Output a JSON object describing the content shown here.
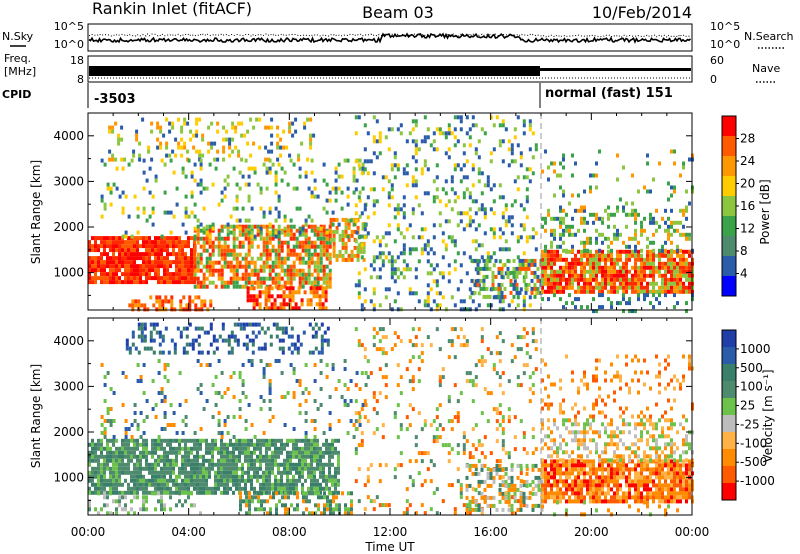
{
  "header": {
    "station": "Rankin Inlet (fitACF)",
    "beam": "Beam 03",
    "date": "10/Feb/2014"
  },
  "noise_panel": {
    "left_label": "N.Sky",
    "right_label": "N.Search",
    "right_legend_line": "dotted",
    "left_ticks": [
      "10^5",
      "10^0"
    ],
    "right_ticks": [
      "10^5",
      "10^0"
    ]
  },
  "freq_panel": {
    "left_label_line1": "Freq.",
    "left_label_line2": "[MHz]",
    "right_label": "Nave",
    "right_legend_line": "dotted",
    "left_ticks": [
      "18",
      "8"
    ],
    "right_ticks": [
      "60",
      "0"
    ]
  },
  "cpid_panel": {
    "label": "CPID",
    "segments": [
      {
        "text": "-3503",
        "start_hour": 0,
        "end_hour": 18
      },
      {
        "text": "normal (fast) 151",
        "start_hour": 18,
        "end_hour": 24
      }
    ]
  },
  "chart_data": [
    {
      "type": "heatmap",
      "name": "power",
      "ylabel": "Slant Range [km]",
      "xlabel": "Time UT",
      "xlim_hours": [
        0,
        24
      ],
      "ylim_km": [
        180,
        4500
      ],
      "ytick_values": [
        1000,
        2000,
        3000,
        4000
      ],
      "ytick_labels": [
        "1000",
        "2000",
        "3000",
        "4000"
      ],
      "colorbar": {
        "label": "Power [dB]",
        "ticks": [
          "28",
          "24",
          "20",
          "16",
          "12",
          "8",
          "4"
        ],
        "colors": [
          "#ff0000",
          "#ff5a00",
          "#ff9800",
          "#ffcc00",
          "#8cc63f",
          "#3aa34a",
          "#4e8a6e",
          "#2a5caa",
          "#0000ff"
        ]
      },
      "dashed_marker_hour": 18,
      "regions": [
        {
          "t0": 0.0,
          "t1": 4.2,
          "r0": 750,
          "r1": 1800,
          "colors": [
            "#ff0000",
            "#ff2a00",
            "#ff5a00"
          ],
          "density": 0.9
        },
        {
          "t0": 4.2,
          "t1": 9.6,
          "r0": 700,
          "r1": 2050,
          "colors": [
            "#ff2a00",
            "#ff5a00",
            "#8cc63f",
            "#ff9800",
            "#3aa34a"
          ],
          "density": 0.7
        },
        {
          "t0": 9.6,
          "t1": 11.0,
          "r0": 1300,
          "r1": 2200,
          "colors": [
            "#8cc63f",
            "#ff9800",
            "#ff5a00"
          ],
          "density": 0.55
        },
        {
          "t0": 1.6,
          "t1": 5.0,
          "r0": 180,
          "r1": 500,
          "colors": [
            "#ff2a00",
            "#ff5a00",
            "#ff9800"
          ],
          "density": 0.55
        },
        {
          "t0": 6.3,
          "t1": 9.5,
          "r0": 180,
          "r1": 700,
          "colors": [
            "#ff0000",
            "#ff5a00",
            "#ff9800"
          ],
          "density": 0.6
        },
        {
          "t0": 0.8,
          "t1": 9.0,
          "r0": 3500,
          "r1": 4400,
          "colors": [
            "#8cc63f",
            "#ffcc00",
            "#ff9800",
            "#2a5caa"
          ],
          "density": 0.22
        },
        {
          "t0": 0.5,
          "t1": 11.0,
          "r0": 1800,
          "r1": 3500,
          "colors": [
            "#8cc63f",
            "#3aa34a",
            "#2a5caa",
            "#ffcc00"
          ],
          "density": 0.16
        },
        {
          "t0": 10.6,
          "t1": 17.8,
          "r0": 180,
          "r1": 4450,
          "colors": [
            "#2a5caa",
            "#2a5caa",
            "#3aa34a",
            "#8cc63f",
            "#ffcc00"
          ],
          "density": 0.2
        },
        {
          "t0": 15.2,
          "t1": 18.0,
          "r0": 500,
          "r1": 1300,
          "colors": [
            "#2a5caa",
            "#3aa34a",
            "#ff5a00",
            "#8cc63f"
          ],
          "density": 0.5
        },
        {
          "t0": 18.0,
          "t1": 24.0,
          "r0": 550,
          "r1": 1500,
          "colors": [
            "#ff2a00",
            "#ff5a00",
            "#ff0000",
            "#ff9800",
            "#8cc63f"
          ],
          "density": 0.85
        },
        {
          "t0": 18.0,
          "t1": 24.0,
          "r0": 1500,
          "r1": 2400,
          "colors": [
            "#8cc63f",
            "#3aa34a",
            "#ff9800",
            "#2a5caa"
          ],
          "density": 0.35
        },
        {
          "t0": 18.0,
          "t1": 24.0,
          "r0": 2400,
          "r1": 3700,
          "colors": [
            "#3aa34a",
            "#ff9800",
            "#8cc63f",
            "#2a5caa"
          ],
          "density": 0.12
        },
        {
          "t0": 18.0,
          "t1": 24.0,
          "r0": 180,
          "r1": 550,
          "colors": [
            "#2a5caa",
            "#3aa34a"
          ],
          "density": 0.15
        }
      ]
    },
    {
      "type": "heatmap",
      "name": "velocity",
      "ylabel": "Slant Range [km]",
      "xlabel": "Time UT",
      "xlim_hours": [
        0,
        24
      ],
      "ylim_km": [
        180,
        4500
      ],
      "ytick_values": [
        1000,
        2000,
        3000,
        4000
      ],
      "ytick_labels": [
        "1000",
        "2000",
        "3000",
        "4000"
      ],
      "xtick_labels": [
        "00:00",
        "04:00",
        "08:00",
        "12:00",
        "16:00",
        "20:00",
        "00:00"
      ],
      "xtick_hours": [
        0,
        4,
        8,
        12,
        16,
        20,
        24
      ],
      "colorbar": {
        "label": "Velocity [m s⁻¹]",
        "ticks": [
          "1000",
          "500",
          "100",
          "25",
          "-25",
          "-100",
          "-500",
          "-1000"
        ],
        "colors": [
          "#1f3ea8",
          "#2a5caa",
          "#3a7f6a",
          "#4e8a6e",
          "#6cc24a",
          "#bdbdbd",
          "#ffb347",
          "#ff8c00",
          "#ff5a00",
          "#ff0000"
        ]
      },
      "dashed_marker_hour": 18,
      "regions": [
        {
          "t0": 0.0,
          "t1": 10.0,
          "r0": 700,
          "r1": 1850,
          "colors": [
            "#4e8a6e",
            "#3a7f6a",
            "#6cc24a",
            "#4e8a6e"
          ],
          "density": 0.8
        },
        {
          "t0": 0.0,
          "t1": 4.5,
          "r0": 180,
          "r1": 700,
          "colors": [
            "#bdbdbd",
            "#6cc24a",
            "#4e8a6e"
          ],
          "density": 0.3
        },
        {
          "t0": 6.0,
          "t1": 10.5,
          "r0": 180,
          "r1": 700,
          "colors": [
            "#6cc24a",
            "#3a7f6a",
            "#4e8a6e",
            "#ff8c00"
          ],
          "density": 0.5
        },
        {
          "t0": 1.5,
          "t1": 9.6,
          "r0": 3700,
          "r1": 4400,
          "colors": [
            "#2a5caa",
            "#1f3ea8",
            "#3a7f6a"
          ],
          "density": 0.3
        },
        {
          "t0": 0.5,
          "t1": 11.0,
          "r0": 1900,
          "r1": 3600,
          "colors": [
            "#6cc24a",
            "#4e8a6e",
            "#ff8c00",
            "#2a5caa"
          ],
          "density": 0.13
        },
        {
          "t0": 10.6,
          "t1": 17.8,
          "r0": 180,
          "r1": 4300,
          "colors": [
            "#ff8c00",
            "#ffb347",
            "#6cc24a",
            "#ff5a00",
            "#4e8a6e"
          ],
          "density": 0.13
        },
        {
          "t0": 15.0,
          "t1": 18.0,
          "r0": 300,
          "r1": 1300,
          "colors": [
            "#bdbdbd",
            "#ff8c00",
            "#6cc24a",
            "#3a7f6a"
          ],
          "density": 0.45
        },
        {
          "t0": 18.0,
          "t1": 24.0,
          "r0": 500,
          "r1": 1400,
          "colors": [
            "#ff8c00",
            "#ff5a00",
            "#ffb347",
            "#ff0000",
            "#ff8c00"
          ],
          "density": 0.85
        },
        {
          "t0": 18.0,
          "t1": 24.0,
          "r0": 1400,
          "r1": 2300,
          "colors": [
            "#ffb347",
            "#bdbdbd",
            "#ff8c00",
            "#6cc24a"
          ],
          "density": 0.4
        },
        {
          "t0": 18.0,
          "t1": 24.0,
          "r0": 2300,
          "r1": 3700,
          "colors": [
            "#ff8c00",
            "#ff5a00",
            "#ffb347"
          ],
          "density": 0.15
        },
        {
          "t0": 18.0,
          "t1": 24.0,
          "r0": 180,
          "r1": 500,
          "colors": [
            "#6cc24a",
            "#ff8c00"
          ],
          "density": 0.15
        }
      ]
    }
  ]
}
